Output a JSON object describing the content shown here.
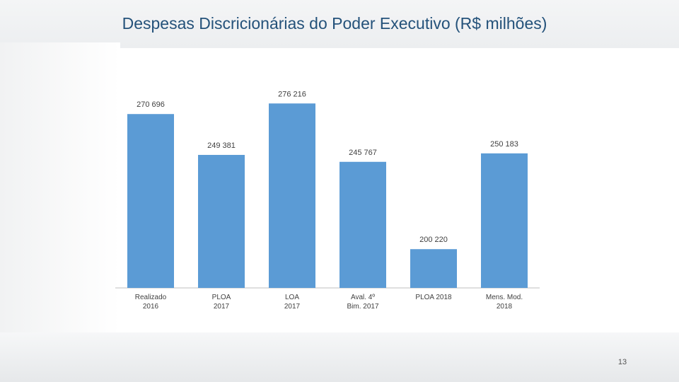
{
  "title": "Despesas Discricionárias do Poder Executivo (R$ milhões)",
  "page_number": "13",
  "colors": {
    "bar": "#5b9bd5",
    "title": "#24527a",
    "axis": "#bfbfbf",
    "text": "#404040"
  },
  "chart_data": {
    "type": "bar",
    "categories": [
      [
        "Realizado",
        "2016"
      ],
      [
        "PLOA",
        "2017"
      ],
      [
        "LOA",
        "2017"
      ],
      [
        "Aval. 4º",
        "Bim. 2017"
      ],
      [
        "PLOA 2018"
      ],
      [
        "Mens. Mod.",
        "2018"
      ]
    ],
    "values": [
      270696,
      249381,
      276216,
      245767,
      200220,
      250183
    ],
    "value_labels": [
      "270 696",
      "249 381",
      "276 216",
      "245 767",
      "200 220",
      "250 183"
    ],
    "ylim": [
      180000,
      280000
    ],
    "grid": false,
    "legend": "none"
  }
}
